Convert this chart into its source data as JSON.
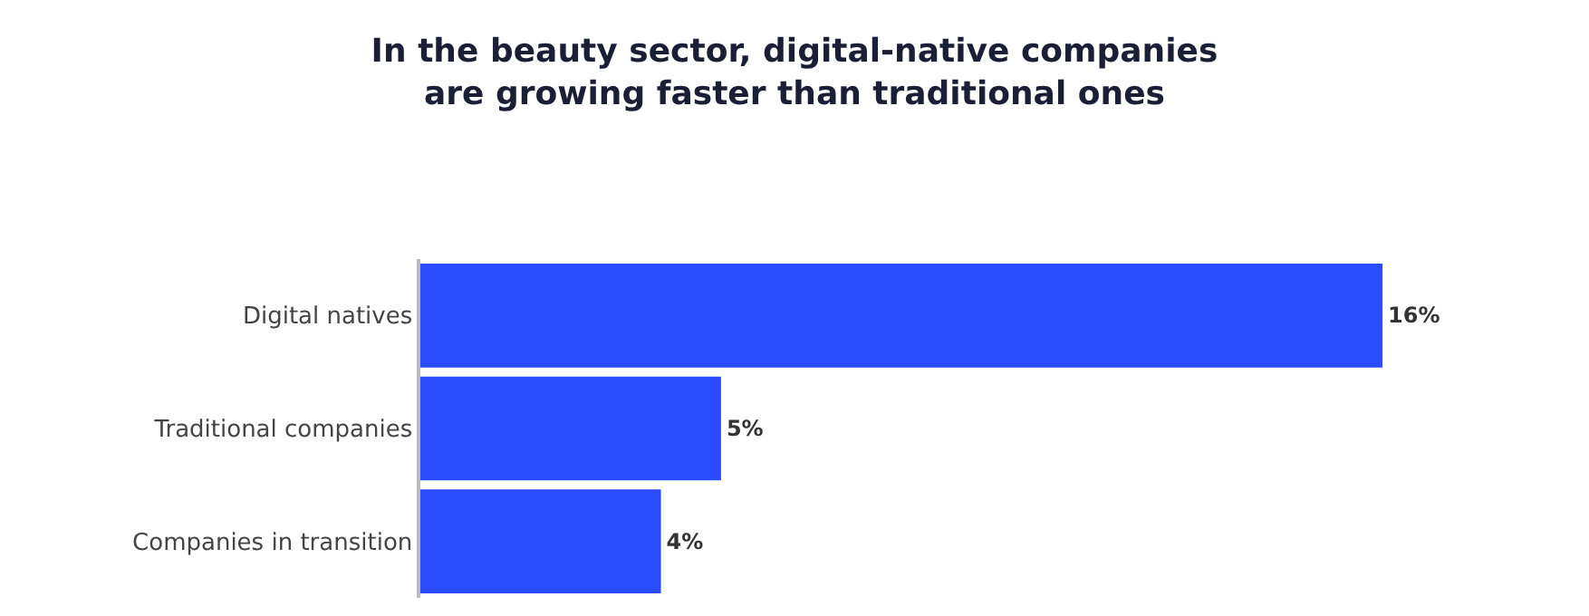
{
  "chart_data": {
    "type": "bar",
    "orientation": "horizontal",
    "title": "In the beauty sector, digital-native companies\nare growing faster than traditional ones",
    "categories": [
      "Digital natives",
      "Traditional companies",
      "Companies in transition"
    ],
    "values": [
      16,
      5,
      4
    ],
    "value_labels": [
      "16%",
      "5%",
      "4%"
    ],
    "color": "#2b4bff",
    "grid": false,
    "legend": false
  }
}
